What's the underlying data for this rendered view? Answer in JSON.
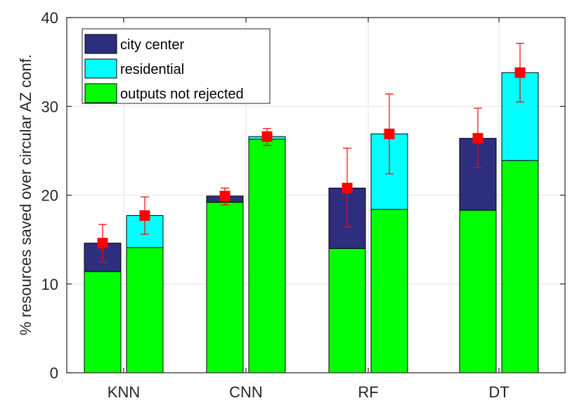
{
  "chart_data": {
    "type": "bar",
    "subtype": "stacked-grouped-with-errorbars",
    "categories": [
      "KNN",
      "CNN",
      "RF",
      "DT"
    ],
    "ylabel": "% resources saved over circular AZ conf.",
    "ylim": [
      0,
      40
    ],
    "yticks": [
      0,
      10,
      20,
      30,
      40
    ],
    "grid": true,
    "legend": {
      "placement": "top-left",
      "entries": [
        {
          "label": "city center",
          "color": "#2e2e7f"
        },
        {
          "label": "residential",
          "color": "#00ffff"
        },
        {
          "label": "outputs not rejected",
          "color": "#00ff00"
        }
      ]
    },
    "groups": [
      {
        "category": "KNN",
        "bars": [
          {
            "scenario": "city center",
            "base": 11.4,
            "total": 14.6,
            "mean": 14.6,
            "err_low": 12.5,
            "err_high": 16.7
          },
          {
            "scenario": "residential",
            "base": 14.1,
            "total": 17.7,
            "mean": 17.7,
            "err_low": 15.6,
            "err_high": 19.8
          }
        ]
      },
      {
        "category": "CNN",
        "bars": [
          {
            "scenario": "city center",
            "base": 19.2,
            "total": 19.9,
            "mean": 19.9,
            "err_low": 18.9,
            "err_high": 20.8
          },
          {
            "scenario": "residential",
            "base": 26.3,
            "total": 26.6,
            "mean": 26.6,
            "err_low": 25.6,
            "err_high": 27.5
          }
        ]
      },
      {
        "category": "RF",
        "bars": [
          {
            "scenario": "city center",
            "base": 14.0,
            "total": 20.8,
            "mean": 20.8,
            "err_low": 16.4,
            "err_high": 25.3
          },
          {
            "scenario": "residential",
            "base": 18.4,
            "total": 26.9,
            "mean": 26.9,
            "err_low": 22.4,
            "err_high": 31.4
          }
        ]
      },
      {
        "category": "DT",
        "bars": [
          {
            "scenario": "city center",
            "base": 18.3,
            "total": 26.4,
            "mean": 26.4,
            "err_low": 23.1,
            "err_high": 29.8
          },
          {
            "scenario": "residential",
            "base": 23.9,
            "total": 33.8,
            "mean": 33.8,
            "err_low": 30.5,
            "err_high": 37.1
          }
        ]
      }
    ],
    "colors": {
      "base": "#00ff00",
      "city_center": "#2e2e7f",
      "residential": "#00ffff",
      "marker": "#ff0000",
      "errorbar": "#ff0000",
      "grid": "#e6e6e6",
      "axis": "#262626"
    }
  }
}
